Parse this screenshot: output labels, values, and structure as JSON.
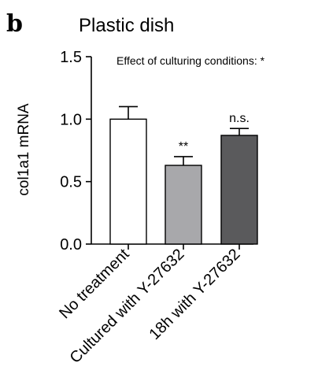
{
  "panel_label": "b",
  "chart_data": {
    "type": "bar",
    "title": "Plastic dish",
    "annotation": "Effect of culturing conditions: *",
    "ylabel": "col1a1 mRNA",
    "xlabel": "",
    "ylim": [
      0,
      1.5
    ],
    "yticks": [
      0.0,
      0.5,
      1.0,
      1.5
    ],
    "ytick_labels": [
      "0.0",
      "0.5",
      "1.0",
      "1.5"
    ],
    "categories": [
      "No treatment",
      "Cultured with Y-27632",
      "18h with Y-27632"
    ],
    "values": [
      1.0,
      0.63,
      0.87
    ],
    "errors": [
      0.1,
      0.07,
      0.055
    ],
    "significance": [
      "",
      "**",
      "n.s."
    ],
    "bar_colors": [
      "#ffffff",
      "#a8a8ab",
      "#5a5a5c"
    ],
    "grid": false
  }
}
